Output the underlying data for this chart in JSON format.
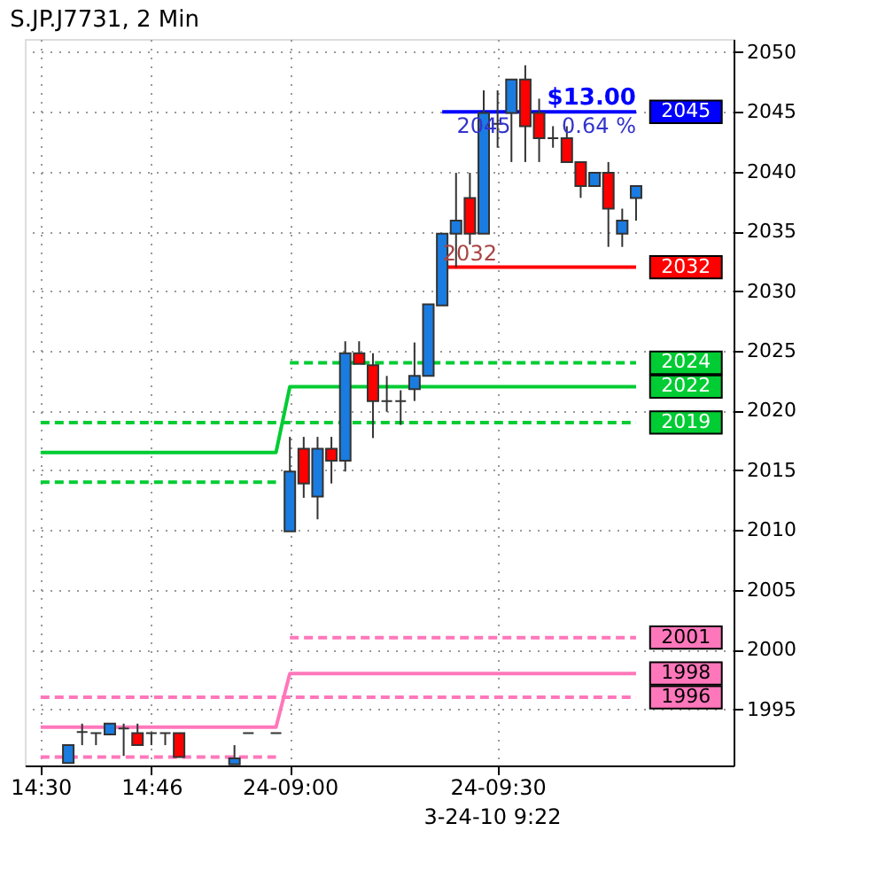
{
  "chart_data": {
    "type": "candlestick",
    "title": "S.JP.J7731, 2 Min",
    "categories": [
      "14:30",
      null,
      null,
      null,
      null,
      null,
      null,
      null,
      "14:46",
      null,
      null,
      null,
      null,
      null,
      null,
      null,
      null,
      null,
      "24-09:00",
      null,
      null,
      null,
      null,
      null,
      null,
      null,
      null,
      null,
      null,
      null,
      null,
      null,
      null,
      "24-09:30",
      null,
      null,
      null,
      null,
      null,
      null,
      null,
      null,
      null,
      null
    ],
    "ohlc": [
      null,
      null,
      [
        1990.5,
        1992.0,
        1990.5,
        1992.0
      ],
      [
        1993.1,
        1993.8,
        1992.0,
        1993.1
      ],
      [
        1993.0,
        1993.0,
        1992.0,
        1993.0
      ],
      [
        1992.9,
        1993.8,
        1992.9,
        1993.8
      ],
      [
        1993.4,
        1993.8,
        1991.1,
        1993.4
      ],
      [
        1993.0,
        1993.8,
        1992.0,
        1992.0
      ],
      [
        1993.0,
        1993.0,
        1992.0,
        1993.0
      ],
      [
        1993.0,
        1993.0,
        1992.0,
        1993.0
      ],
      [
        1993.0,
        1993.0,
        1991.0,
        1991.0
      ],
      null,
      null,
      null,
      [
        1990.4,
        1992.0,
        1990.4,
        1990.9
      ],
      [
        1993.0,
        1993.0,
        1993.0,
        1993.0
      ],
      null,
      [
        1993.0,
        1993.0,
        1993.0,
        1993.0
      ],
      [
        2009.9,
        2017.8,
        2009.9,
        2014.9
      ],
      [
        2016.8,
        2017.8,
        2012.7,
        2013.9
      ],
      [
        2012.8,
        2017.8,
        2010.9,
        2016.8
      ],
      [
        2016.8,
        2017.8,
        2013.9,
        2015.8
      ],
      [
        2015.8,
        2025.8,
        2014.9,
        2024.8
      ],
      [
        2024.8,
        2025.8,
        2023.9,
        2023.9
      ],
      [
        2023.8,
        2024.8,
        2017.7,
        2020.8
      ],
      [
        2020.8,
        2022.9,
        2019.9,
        2020.8
      ],
      [
        2020.8,
        2021.7,
        2018.8,
        2020.8
      ],
      [
        2021.8,
        2025.7,
        2020.8,
        2022.9
      ],
      [
        2022.9,
        2028.9,
        2022.9,
        2028.9
      ],
      [
        2028.8,
        2034.8,
        2028.8,
        2034.8
      ],
      [
        2034.8,
        2039.9,
        2032.0,
        2035.9
      ],
      [
        2037.8,
        2039.9,
        2033.9,
        2034.8
      ],
      [
        2034.8,
        2046.8,
        2034.8,
        2044.9
      ],
      [
        2044.0,
        2046.8,
        2042.0,
        2044.0
      ],
      [
        2044.9,
        2047.7,
        2040.8,
        2047.7
      ],
      [
        2047.7,
        2048.9,
        2040.8,
        2043.8
      ],
      [
        2044.9,
        2046.1,
        2040.8,
        2042.8
      ],
      [
        2042.8,
        2043.8,
        2042.0,
        2042.8
      ],
      [
        2042.8,
        2043.8,
        2040.8,
        2040.8
      ],
      [
        2040.8,
        2040.8,
        2037.8,
        2038.8
      ],
      [
        2038.8,
        2039.9,
        2038.8,
        2039.9
      ],
      [
        2039.9,
        2040.8,
        2033.7,
        2036.9
      ],
      [
        2034.8,
        2036.9,
        2033.7,
        2035.9
      ],
      [
        2037.8,
        2038.8,
        2035.9,
        2038.8
      ]
    ],
    "colors": [
      null,
      null,
      "#1a7ce0",
      "#333333",
      "#333333",
      "#1a7ce0",
      "#333333",
      "#ff0000",
      "#333333",
      "#333333",
      "#ff0000",
      null,
      null,
      null,
      "#1a7ce0",
      "#333333",
      null,
      "#333333",
      "#1a7ce0",
      "#ff0000",
      "#1a7ce0",
      "#ff0000",
      "#1a7ce0",
      "#ff0000",
      "#ff0000",
      "#333333",
      "#333333",
      "#1a7ce0",
      "#1a7ce0",
      "#1a7ce0",
      "#1a7ce0",
      "#ff0000",
      "#1a7ce0",
      "#333333",
      "#1a7ce0",
      "#ff0000",
      "#ff0000",
      "#333333",
      "#ff0000",
      "#ff0000",
      "#1a7ce0",
      "#ff0000",
      "#1a7ce0",
      "#1a7ce0"
    ],
    "series": [
      {
        "type": "line",
        "color": "#00cc33",
        "line_style": "solid",
        "values": [
          2016.5,
          2016.5,
          2016.5,
          2016.5,
          2016.5,
          2016.5,
          2016.5,
          2016.5,
          2016.5,
          2016.5,
          2016.5,
          2016.5,
          2016.5,
          2016.5,
          2016.5,
          2016.5,
          2016.5,
          2016.5,
          2022,
          2022,
          2022,
          2022,
          2022,
          2022,
          2022,
          2022,
          2022,
          2022,
          2022,
          2022,
          2022,
          2022,
          2022,
          2022,
          2022,
          2022,
          2022,
          2022,
          2022,
          2022,
          2022,
          2022,
          2022,
          2022
        ],
        "value_labels": [
          null,
          null,
          null,
          null,
          null,
          null,
          null,
          null,
          null,
          null,
          null,
          null,
          null,
          null,
          null,
          null,
          null,
          null,
          null,
          null,
          null,
          null,
          null,
          null,
          null,
          null,
          null,
          null,
          null,
          null,
          null,
          null,
          null,
          null,
          null,
          null,
          null,
          null,
          null,
          null,
          null,
          null,
          null,
          "2022"
        ]
      },
      {
        "type": "line",
        "color": "#00cc33",
        "line_style": "dashed",
        "values": [
          2019,
          2019,
          2019,
          2019,
          2019,
          2019,
          2019,
          2019,
          2019,
          2019,
          2019,
          2019,
          2019,
          2019,
          2019,
          2019,
          2019,
          2019,
          2019,
          2019,
          2019,
          2019,
          null,
          2019,
          2019,
          2019,
          2019,
          2019,
          2019,
          2019,
          2019,
          2019,
          2019,
          2019,
          2019,
          2019,
          2019,
          2019,
          2019,
          2019,
          2019,
          2019,
          2019,
          2019
        ],
        "value_labels": [
          null,
          null,
          null,
          null,
          null,
          null,
          null,
          null,
          null,
          null,
          null,
          null,
          null,
          null,
          null,
          null,
          null,
          null,
          null,
          null,
          null,
          null,
          null,
          null,
          null,
          null,
          null,
          null,
          null,
          null,
          null,
          null,
          null,
          null,
          null,
          null,
          null,
          null,
          null,
          null,
          null,
          null,
          null,
          "2019"
        ]
      },
      {
        "type": "line",
        "color": "#00cc33",
        "line_style": "dashed",
        "values": [
          2014,
          2014,
          2014,
          2014,
          2014,
          2014,
          2014,
          2014,
          2014,
          2014,
          2014,
          2014,
          2014,
          2014,
          2014,
          2014,
          2014,
          2014,
          null,
          null,
          null,
          null,
          null,
          null,
          null,
          null,
          null,
          null,
          null,
          null,
          null,
          null,
          null,
          null,
          null,
          null,
          null,
          null,
          null,
          null,
          null,
          null,
          null,
          null
        ]
      },
      {
        "type": "line",
        "color": "#00cc33",
        "line_style": "dashed",
        "values": [
          null,
          null,
          null,
          null,
          null,
          null,
          null,
          null,
          null,
          null,
          null,
          null,
          null,
          null,
          null,
          null,
          null,
          null,
          2024,
          2024,
          2024,
          2024,
          2024,
          2024,
          2024,
          2024,
          2024,
          2024,
          2024,
          2024,
          2024,
          2024,
          2024,
          2024,
          2024,
          2024,
          2024,
          2024,
          2024,
          2024,
          2024,
          2024,
          2024,
          2024
        ],
        "value_labels": [
          null,
          null,
          null,
          null,
          null,
          null,
          null,
          null,
          null,
          null,
          null,
          null,
          null,
          null,
          null,
          null,
          null,
          null,
          null,
          null,
          null,
          null,
          null,
          null,
          null,
          null,
          null,
          null,
          null,
          null,
          null,
          null,
          null,
          null,
          null,
          null,
          null,
          null,
          null,
          null,
          null,
          null,
          null,
          "2024"
        ]
      },
      {
        "type": "line",
        "color": "#ff77bb",
        "line_style": "solid",
        "values": [
          1993.5,
          1993.5,
          1993.5,
          1993.5,
          1993.5,
          1993.5,
          1993.5,
          1993.5,
          1993.5,
          1993.5,
          1993.5,
          1993.5,
          1993.5,
          1993.5,
          1993.5,
          1993.5,
          1993.5,
          1993.5,
          1998,
          1998,
          1998,
          1998,
          1998,
          1998,
          1998,
          1998,
          1998,
          1998,
          1998,
          1998,
          1998,
          1998,
          1998,
          1998,
          1998,
          1998,
          1998,
          1998,
          1998,
          1998,
          1998,
          1998,
          1998,
          1998
        ],
        "value_labels": [
          null,
          null,
          null,
          null,
          null,
          null,
          null,
          null,
          null,
          null,
          null,
          null,
          null,
          null,
          null,
          null,
          null,
          null,
          null,
          null,
          null,
          null,
          null,
          null,
          null,
          null,
          null,
          null,
          null,
          null,
          null,
          null,
          null,
          null,
          null,
          null,
          null,
          null,
          null,
          null,
          null,
          null,
          null,
          "1998"
        ]
      },
      {
        "type": "line",
        "color": "#ff77bb",
        "line_style": "dashed",
        "values": [
          1996,
          1996,
          1996,
          1996,
          1996,
          1996,
          1996,
          1996,
          1996,
          1996,
          1996,
          1996,
          1996,
          1996,
          1996,
          1996,
          1996,
          1996,
          1996,
          1996,
          1996,
          1996,
          1996,
          1996,
          1996,
          1996,
          1996,
          1996,
          1996,
          1996,
          1996,
          1996,
          1996,
          1996,
          1996,
          1996,
          1996,
          1996,
          1996,
          1996,
          1996,
          1996,
          1996,
          1996
        ],
        "value_labels": [
          null,
          null,
          null,
          null,
          null,
          null,
          null,
          null,
          null,
          null,
          null,
          null,
          null,
          null,
          null,
          null,
          null,
          null,
          null,
          null,
          null,
          null,
          null,
          null,
          null,
          null,
          null,
          null,
          null,
          null,
          null,
          null,
          null,
          null,
          null,
          null,
          null,
          null,
          null,
          null,
          null,
          null,
          null,
          "1996"
        ]
      },
      {
        "type": "line",
        "color": "#ff77bb",
        "line_style": "dashed",
        "values": [
          1991,
          1991,
          1991,
          1991,
          1991,
          1991,
          1991,
          1991,
          1991,
          1991,
          1991,
          1991,
          1991,
          1991,
          1991,
          1991,
          1991,
          1991,
          null,
          null,
          null,
          null,
          null,
          null,
          null,
          null,
          null,
          null,
          null,
          null,
          null,
          null,
          null,
          null,
          null,
          null,
          null,
          null,
          null,
          null,
          null,
          null,
          null,
          null
        ]
      },
      {
        "type": "line",
        "color": "#ff77bb",
        "line_style": "dashed",
        "values": [
          null,
          null,
          null,
          null,
          null,
          null,
          null,
          null,
          null,
          null,
          null,
          null,
          null,
          null,
          null,
          null,
          null,
          null,
          2001,
          2001,
          2001,
          2001,
          2001,
          2001,
          2001,
          2001,
          2001,
          2001,
          2001,
          2001,
          2001,
          2001,
          2001,
          2001,
          2001,
          2001,
          2001,
          2001,
          2001,
          2001,
          2001,
          2001,
          2001,
          2001
        ],
        "value_labels": [
          null,
          null,
          null,
          null,
          null,
          null,
          null,
          null,
          null,
          null,
          null,
          null,
          null,
          null,
          null,
          null,
          null,
          null,
          null,
          null,
          null,
          null,
          null,
          null,
          null,
          null,
          null,
          null,
          null,
          null,
          null,
          null,
          null,
          null,
          null,
          null,
          null,
          null,
          null,
          null,
          null,
          null,
          null,
          "2001"
        ]
      },
      {
        "type": "line",
        "color": "#0000ff",
        "line_style": "solid",
        "values": [
          null,
          null,
          null,
          null,
          null,
          null,
          null,
          null,
          null,
          null,
          null,
          null,
          null,
          null,
          null,
          null,
          null,
          null,
          null,
          null,
          null,
          null,
          null,
          null,
          null,
          null,
          null,
          null,
          null,
          2045,
          2045,
          2045,
          2045,
          2045,
          2045,
          2045,
          2045,
          2045,
          2045,
          2045,
          2045,
          2045,
          2045,
          2045
        ],
        "value_labels": [
          null,
          null,
          null,
          null,
          null,
          null,
          null,
          null,
          null,
          null,
          null,
          null,
          null,
          null,
          null,
          null,
          null,
          null,
          null,
          null,
          null,
          null,
          null,
          null,
          null,
          null,
          null,
          null,
          null,
          null,
          null,
          null,
          null,
          null,
          null,
          null,
          null,
          null,
          null,
          null,
          null,
          null,
          null,
          "2045"
        ]
      },
      {
        "type": "line",
        "color": "#ff0000",
        "line_style": "solid",
        "values": [
          null,
          null,
          null,
          null,
          null,
          null,
          null,
          null,
          null,
          null,
          null,
          null,
          null,
          null,
          null,
          null,
          null,
          null,
          null,
          null,
          null,
          null,
          null,
          null,
          null,
          null,
          null,
          null,
          null,
          2032,
          2032,
          2032,
          2032,
          2032,
          2032,
          2032,
          2032,
          2032,
          2032,
          2032,
          2032,
          2032,
          2032,
          2032
        ],
        "value_labels": [
          null,
          null,
          null,
          null,
          null,
          null,
          null,
          null,
          null,
          null,
          null,
          null,
          null,
          null,
          null,
          null,
          null,
          null,
          null,
          null,
          null,
          null,
          null,
          null,
          null,
          null,
          null,
          null,
          null,
          null,
          null,
          null,
          null,
          null,
          null,
          null,
          null,
          null,
          null,
          null,
          null,
          null,
          null,
          "2032"
        ]
      }
    ],
    "annotations": [
      {
        "text": "$13.00",
        "y": 2045
      },
      {
        "text": "2045",
        "y": 2045
      },
      {
        "text": "0.64 %",
        "y": 2045
      },
      {
        "text": "2032",
        "y": 2032
      },
      "3-24-10 9:22"
    ],
    "ylim": [
      1990.3,
      2051.1
    ],
    "yticks": [
      1995,
      2000,
      2005,
      2010,
      2015,
      2020,
      2025,
      2030,
      2035,
      2040,
      2045,
      2050
    ],
    "grid": true
  }
}
